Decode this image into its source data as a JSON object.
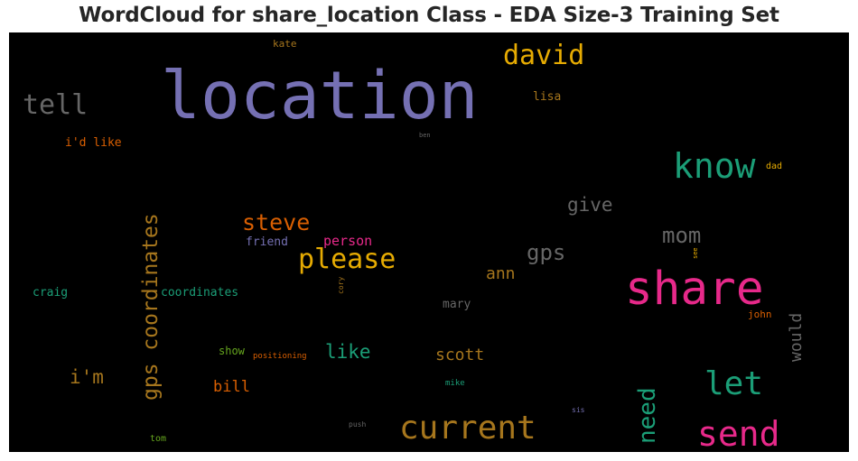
{
  "chart_data": {
    "type": "wordcloud",
    "title": "WordCloud for share_location Class - EDA Size-3 Training Set",
    "background": "#000000",
    "words": [
      {
        "text": "location",
        "weight": 1.0,
        "color": "#7570b3"
      },
      {
        "text": "share",
        "weight": 0.75,
        "color": "#e7298a"
      },
      {
        "text": "send",
        "weight": 0.6,
        "color": "#e7298a"
      },
      {
        "text": "current",
        "weight": 0.6,
        "color": "#a6761d"
      },
      {
        "text": "know",
        "weight": 0.6,
        "color": "#1b9e77"
      },
      {
        "text": "let",
        "weight": 0.55,
        "color": "#1b9e77"
      },
      {
        "text": "tell",
        "weight": 0.5,
        "color": "#666666"
      },
      {
        "text": "david",
        "weight": 0.48,
        "color": "#e6ab02"
      },
      {
        "text": "please",
        "weight": 0.48,
        "color": "#e6ab02"
      },
      {
        "text": "gps coordinates",
        "weight": 0.42,
        "color": "#a6761d"
      },
      {
        "text": "need",
        "weight": 0.42,
        "color": "#1b9e77"
      },
      {
        "text": "steve",
        "weight": 0.38,
        "color": "#d95f02"
      },
      {
        "text": "mom",
        "weight": 0.36,
        "color": "#666666"
      },
      {
        "text": "gps",
        "weight": 0.36,
        "color": "#666666"
      },
      {
        "text": "give",
        "weight": 0.32,
        "color": "#666666"
      },
      {
        "text": "i'm",
        "weight": 0.32,
        "color": "#a6761d"
      },
      {
        "text": "like",
        "weight": 0.3,
        "color": "#1b9e77"
      },
      {
        "text": "scott",
        "weight": 0.3,
        "color": "#a6761d"
      },
      {
        "text": "would",
        "weight": 0.28,
        "color": "#666666"
      },
      {
        "text": "ann",
        "weight": 0.28,
        "color": "#a6761d"
      },
      {
        "text": "bill",
        "weight": 0.27,
        "color": "#d95f02"
      },
      {
        "text": "person",
        "weight": 0.24,
        "color": "#e7298a"
      },
      {
        "text": "friend",
        "weight": 0.22,
        "color": "#7570b3"
      },
      {
        "text": "mary",
        "weight": 0.22,
        "color": "#666666"
      },
      {
        "text": "lisa",
        "weight": 0.2,
        "color": "#a6761d"
      },
      {
        "text": "i'd like",
        "weight": 0.2,
        "color": "#d95f02"
      },
      {
        "text": "craig",
        "weight": 0.2,
        "color": "#1b9e77"
      },
      {
        "text": "coordinates",
        "weight": 0.2,
        "color": "#1b9e77"
      },
      {
        "text": "show",
        "weight": 0.2,
        "color": "#66a61e"
      },
      {
        "text": "kate",
        "weight": 0.16,
        "color": "#a6761d"
      },
      {
        "text": "john",
        "weight": 0.16,
        "color": "#d95f02"
      },
      {
        "text": "dad",
        "weight": 0.16,
        "color": "#e6ab02"
      },
      {
        "text": "tom",
        "weight": 0.16,
        "color": "#66a61e"
      },
      {
        "text": "positioning",
        "weight": 0.14,
        "color": "#d95f02"
      },
      {
        "text": "mike",
        "weight": 0.13,
        "color": "#1b9e77"
      },
      {
        "text": "push",
        "weight": 0.12,
        "color": "#666666"
      },
      {
        "text": "sis",
        "weight": 0.12,
        "color": "#7570b3"
      },
      {
        "text": "ben",
        "weight": 0.12,
        "color": "#666666"
      },
      {
        "text": "cory",
        "weight": 0.12,
        "color": "#a6761d"
      },
      {
        "text": "see",
        "weight": 0.11,
        "color": "#e6ab02"
      }
    ]
  }
}
